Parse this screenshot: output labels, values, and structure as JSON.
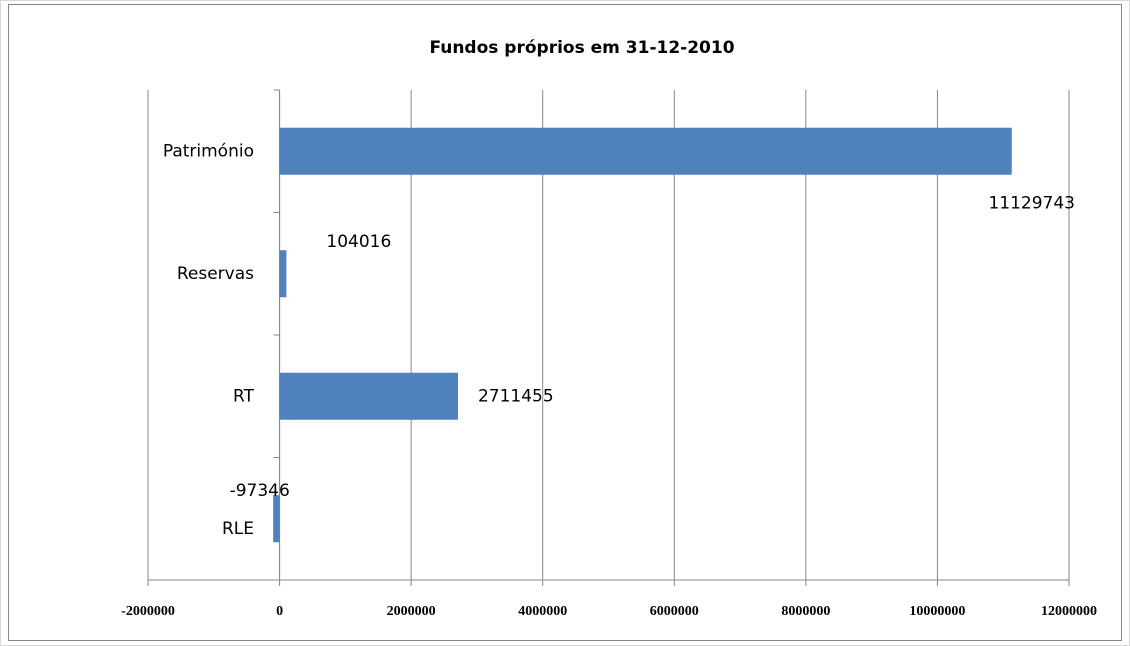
{
  "chart_data": {
    "type": "barh",
    "title": "Fundos próprios em 31-12-2010",
    "categories": [
      "Património",
      "Reservas",
      "RT",
      "RLE"
    ],
    "values": [
      11129743,
      104016,
      2711455,
      -97346
    ],
    "color": "#4f81bd",
    "xlim": [
      -2000000,
      12000000
    ],
    "xticks": [
      -2000000,
      0,
      2000000,
      4000000,
      6000000,
      8000000,
      10000000,
      12000000
    ],
    "grid": true
  }
}
